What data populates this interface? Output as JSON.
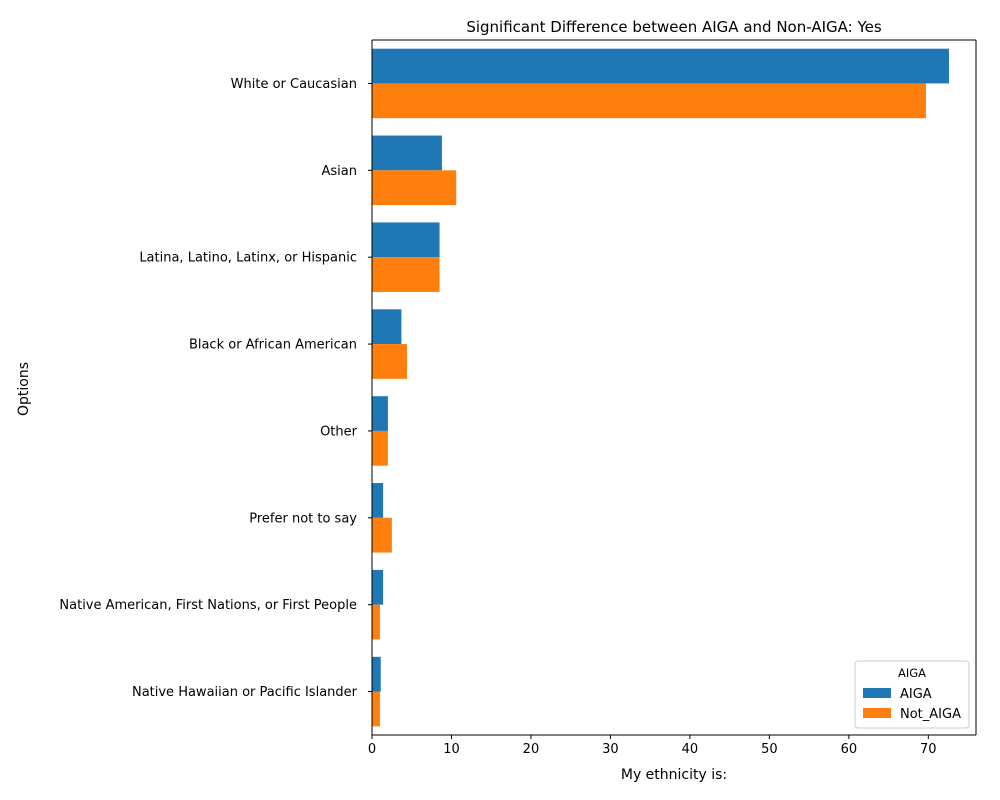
{
  "chart_data": {
    "type": "bar",
    "orientation": "horizontal",
    "title": "Significant Difference between AIGA and Non-AIGA: Yes",
    "xlabel": "My ethnicity is:",
    "ylabel": "Options",
    "xlim": [
      0,
      76
    ],
    "xticks": [
      0,
      10,
      20,
      30,
      40,
      50,
      60,
      70
    ],
    "grid": false,
    "legend_placement": "bottom-right",
    "legend_title": "AIGA",
    "categories": [
      "White or Caucasian",
      "Asian",
      "Latina, Latino, Latinx, or Hispanic",
      "Black or African American",
      "Other",
      "Prefer not to say",
      "Native American, First Nations, or First People",
      "Native Hawaiian or Pacific Islander"
    ],
    "series": [
      {
        "name": "AIGA",
        "color": "#1f77b4",
        "values": [
          72.6,
          8.8,
          8.5,
          3.7,
          2.0,
          1.4,
          1.4,
          1.1
        ]
      },
      {
        "name": "Not_AIGA",
        "color": "#ff7f0e",
        "values": [
          69.7,
          10.6,
          8.5,
          4.4,
          2.0,
          2.5,
          1.0,
          1.0
        ]
      }
    ]
  }
}
